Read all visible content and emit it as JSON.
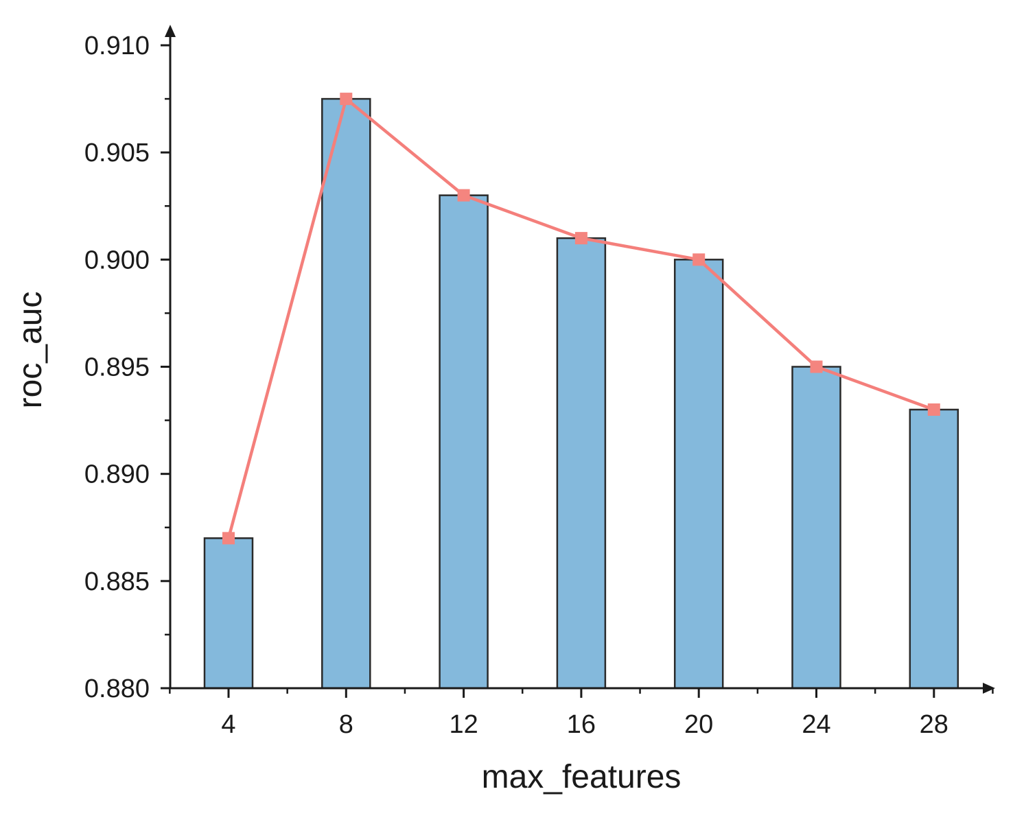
{
  "chart_data": {
    "type": "bar",
    "title": "",
    "xlabel": "max_features",
    "ylabel": "roc_auc",
    "categories": [
      "4",
      "8",
      "12",
      "16",
      "20",
      "24",
      "28"
    ],
    "series": [
      {
        "kind": "bar",
        "values": [
          0.887,
          0.9075,
          0.903,
          0.901,
          0.9,
          0.895,
          0.893
        ]
      },
      {
        "kind": "line",
        "marker": "square",
        "values": [
          0.887,
          0.9075,
          0.903,
          0.901,
          0.9,
          0.895,
          0.893
        ]
      }
    ],
    "y_ticks": [
      "0.880",
      "0.885",
      "0.890",
      "0.895",
      "0.900",
      "0.905",
      "0.910"
    ],
    "ylim": [
      0.88,
      0.91
    ],
    "grid": false,
    "legend": "none",
    "colors": {
      "bar_fill": "#84b9dc",
      "bar_stroke": "#2a2a2a",
      "line": "#f47f7b",
      "marker": "#f4857f",
      "axis": "#1a1a1a"
    }
  }
}
